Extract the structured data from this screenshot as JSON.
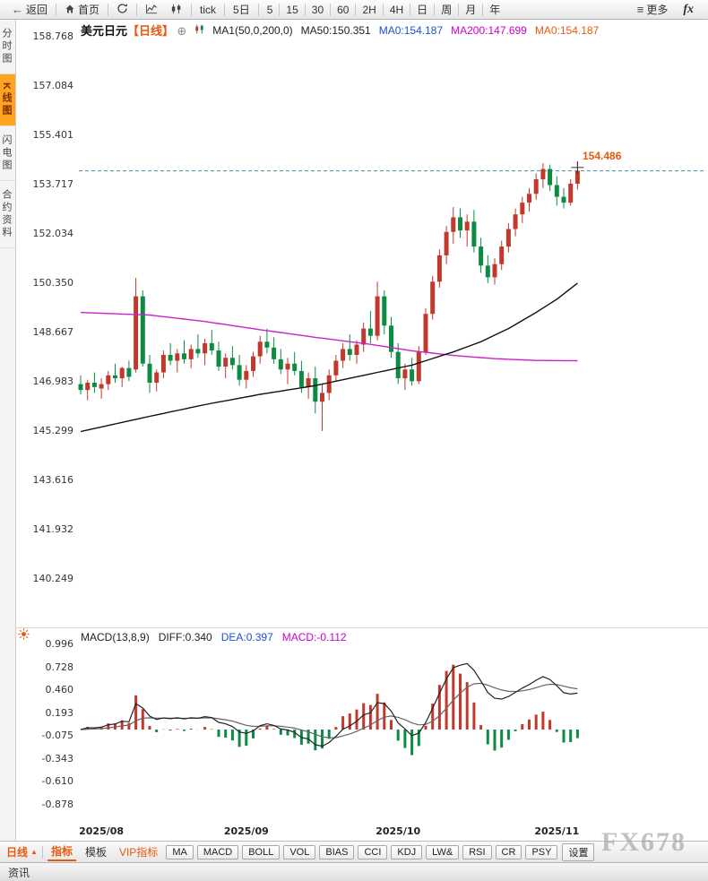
{
  "toolbar": {
    "back_label": "返回",
    "home_label": "首页",
    "tick_label": "tick",
    "five_day_label": "5日",
    "intervals": [
      "5",
      "15",
      "30",
      "60",
      "2H",
      "4H",
      "日",
      "周",
      "月",
      "年"
    ],
    "more_label": "更多",
    "brand": "fx"
  },
  "icons": {
    "back_arrow": "←",
    "menu": "≡",
    "circled_plus": "⊕",
    "caret_up": "▲"
  },
  "sidebar": {
    "items": [
      "分时图",
      "K线图",
      "闪电图",
      "合约资料"
    ],
    "active_index": 1
  },
  "chart_header": {
    "symbol": "美元日元",
    "period": "【日线】",
    "ma_settings": "MA1(50,0,200,0)",
    "ma50": "MA50:150.351",
    "ma0_blue": "MA0:154.187",
    "ma200": "MA200:147.699",
    "ma0_orange": "MA0:154.187"
  },
  "price_marker": {
    "label": "154.486"
  },
  "macd_header": {
    "title": "MACD(13,8,9)",
    "diff": "DIFF:0.340",
    "dea": "DEA:0.397",
    "macd": "MACD:-0.112"
  },
  "bottom_bar": {
    "period_label": "日线",
    "tabs": [
      "指标",
      "模板",
      "VIP指标"
    ],
    "indicator_buttons": [
      "MA",
      "MACD",
      "BOLL",
      "VOL",
      "BIAS",
      "CCI",
      "KDJ",
      "LW&",
      "RSI",
      "CR",
      "PSY"
    ],
    "settings_label": "设置"
  },
  "watermark": "FX678",
  "status_bar": {
    "news_label": "资讯"
  },
  "colors": {
    "up": "#c2382c",
    "down": "#0c8c43",
    "ma50": "#111111",
    "ma200": "#cc22cc",
    "dif_line": "#222222",
    "dea_line": "#666666",
    "dashed_line": "#4f8da3",
    "accent_orange": "#e8590c",
    "blue": "#1f4fd8",
    "magenta": "#cc00cc"
  },
  "chart_data": {
    "type": "candlestick+macd",
    "symbol": "USD/JPY 美元日元",
    "timeframe": "日线 (daily)",
    "x_labels": [
      "2025/08",
      "2025/09",
      "2025/10",
      "2025/11"
    ],
    "month_start_indices": [
      3,
      24,
      46,
      69
    ],
    "price_axis_ticks": [
      158.768,
      157.084,
      155.401,
      153.717,
      152.034,
      150.35,
      148.667,
      146.983,
      145.299,
      143.616,
      141.932,
      140.249
    ],
    "macd_axis_ticks": [
      0.996,
      0.728,
      0.46,
      0.193,
      -0.075,
      -0.343,
      -0.61,
      -0.878
    ],
    "last_price": 154.187,
    "marked_high": 154.486,
    "macd_params": {
      "fast": 8,
      "slow": 13,
      "signal": 9
    },
    "candles": [
      [
        146.9,
        147.2,
        146.55,
        146.7
      ],
      [
        146.7,
        147.05,
        146.35,
        146.95
      ],
      [
        146.95,
        147.3,
        146.6,
        146.8
      ],
      [
        146.75,
        147.1,
        146.4,
        146.9
      ],
      [
        146.9,
        147.35,
        146.7,
        147.2
      ],
      [
        147.2,
        147.6,
        146.95,
        147.1
      ],
      [
        147.1,
        147.5,
        146.8,
        147.45
      ],
      [
        147.45,
        147.7,
        147.0,
        147.15
      ],
      [
        147.4,
        150.53,
        147.3,
        149.9
      ],
      [
        149.9,
        150.1,
        147.5,
        147.6
      ],
      [
        147.6,
        147.9,
        146.6,
        146.95
      ],
      [
        146.95,
        147.4,
        146.65,
        147.3
      ],
      [
        147.3,
        148.05,
        147.1,
        147.9
      ],
      [
        147.9,
        148.3,
        147.55,
        147.7
      ],
      [
        147.7,
        148.1,
        147.3,
        147.95
      ],
      [
        147.95,
        148.4,
        147.6,
        147.75
      ],
      [
        147.75,
        148.25,
        147.45,
        148.1
      ],
      [
        148.1,
        148.6,
        147.8,
        147.95
      ],
      [
        147.95,
        148.45,
        147.55,
        148.3
      ],
      [
        148.3,
        148.75,
        147.9,
        148.05
      ],
      [
        148.05,
        148.35,
        147.35,
        147.5
      ],
      [
        147.5,
        147.95,
        147.1,
        147.8
      ],
      [
        147.8,
        148.2,
        147.4,
        147.55
      ],
      [
        147.55,
        147.9,
        146.85,
        147.05
      ],
      [
        147.05,
        147.55,
        146.75,
        147.35
      ],
      [
        147.35,
        148.0,
        147.15,
        147.85
      ],
      [
        147.85,
        148.55,
        147.6,
        148.35
      ],
      [
        148.35,
        148.8,
        147.95,
        148.15
      ],
      [
        148.15,
        148.5,
        147.6,
        147.75
      ],
      [
        147.75,
        148.1,
        147.25,
        147.4
      ],
      [
        147.4,
        147.8,
        146.9,
        147.6
      ],
      [
        147.6,
        148.0,
        147.2,
        147.35
      ],
      [
        147.35,
        147.7,
        146.6,
        146.8
      ],
      [
        146.8,
        147.3,
        146.4,
        147.1
      ],
      [
        147.1,
        147.5,
        145.9,
        146.3
      ],
      [
        146.3,
        146.9,
        145.3,
        146.6
      ],
      [
        146.6,
        147.4,
        146.35,
        147.2
      ],
      [
        147.2,
        147.9,
        147.0,
        147.7
      ],
      [
        147.7,
        148.3,
        147.45,
        148.1
      ],
      [
        148.1,
        148.6,
        147.7,
        147.9
      ],
      [
        147.9,
        148.4,
        147.6,
        148.25
      ],
      [
        148.25,
        149.0,
        148.0,
        148.8
      ],
      [
        148.8,
        149.4,
        148.3,
        148.55
      ],
      [
        148.55,
        150.4,
        148.4,
        149.9
      ],
      [
        149.9,
        150.1,
        148.6,
        148.9
      ],
      [
        148.9,
        149.2,
        147.8,
        148.0
      ],
      [
        148.0,
        148.3,
        146.9,
        147.1
      ],
      [
        147.1,
        147.6,
        146.7,
        147.4
      ],
      [
        147.4,
        147.8,
        146.85,
        147.0
      ],
      [
        147.0,
        148.2,
        146.9,
        148.0
      ],
      [
        148.0,
        149.5,
        147.9,
        149.3
      ],
      [
        149.3,
        150.6,
        149.1,
        150.4
      ],
      [
        150.4,
        151.5,
        150.2,
        151.3
      ],
      [
        151.3,
        152.3,
        151.0,
        152.1
      ],
      [
        152.1,
        152.95,
        151.7,
        152.6
      ],
      [
        152.6,
        152.9,
        151.9,
        152.15
      ],
      [
        152.15,
        152.7,
        151.6,
        152.45
      ],
      [
        152.45,
        152.85,
        151.4,
        151.6
      ],
      [
        151.6,
        151.9,
        150.7,
        150.95
      ],
      [
        150.95,
        151.3,
        150.35,
        150.55
      ],
      [
        150.55,
        151.2,
        150.3,
        151.0
      ],
      [
        151.0,
        151.8,
        150.8,
        151.6
      ],
      [
        151.6,
        152.4,
        151.4,
        152.2
      ],
      [
        152.2,
        152.9,
        151.95,
        152.7
      ],
      [
        152.7,
        153.3,
        152.4,
        153.1
      ],
      [
        153.1,
        153.6,
        152.8,
        153.4
      ],
      [
        153.4,
        154.1,
        153.2,
        153.9
      ],
      [
        153.9,
        154.45,
        153.6,
        154.25
      ],
      [
        154.25,
        154.4,
        153.5,
        153.7
      ],
      [
        153.7,
        154.0,
        153.0,
        153.3
      ],
      [
        153.3,
        153.6,
        152.9,
        153.1
      ],
      [
        153.1,
        153.9,
        153.0,
        153.75
      ],
      [
        153.75,
        154.49,
        153.55,
        154.19
      ]
    ],
    "ma50_keyframes": [
      [
        0,
        145.28
      ],
      [
        10,
        145.8
      ],
      [
        18,
        146.2
      ],
      [
        26,
        146.55
      ],
      [
        34,
        146.85
      ],
      [
        42,
        147.25
      ],
      [
        48,
        147.55
      ],
      [
        54,
        148.0
      ],
      [
        58,
        148.35
      ],
      [
        62,
        148.8
      ],
      [
        66,
        149.35
      ],
      [
        69,
        149.8
      ],
      [
        72,
        150.35
      ]
    ],
    "ma200_keyframes": [
      [
        0,
        149.35
      ],
      [
        10,
        149.26
      ],
      [
        18,
        149.04
      ],
      [
        26,
        148.76
      ],
      [
        34,
        148.5
      ],
      [
        42,
        148.26
      ],
      [
        48,
        148.04
      ],
      [
        54,
        147.88
      ],
      [
        60,
        147.77
      ],
      [
        66,
        147.71
      ],
      [
        72,
        147.7
      ]
    ]
  }
}
